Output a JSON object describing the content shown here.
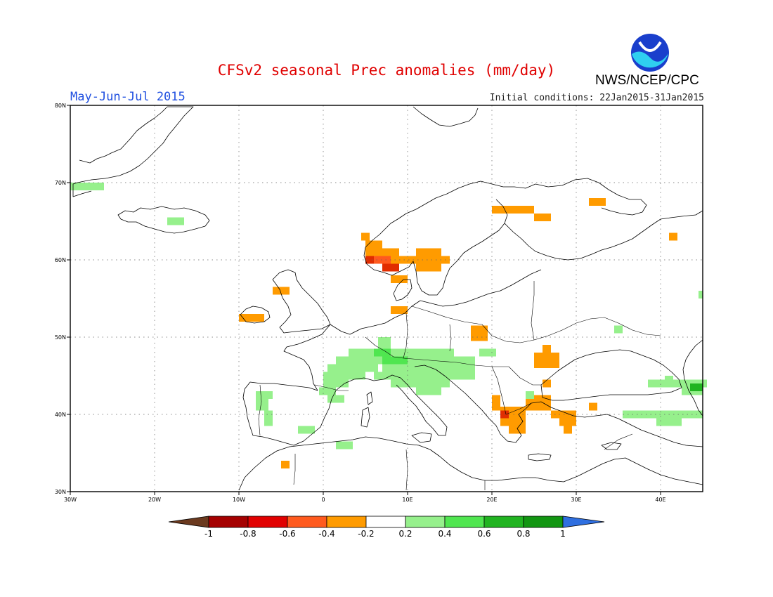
{
  "title": "CFSv2 seasonal Prec anomalies (mm/day)",
  "period": "May-Jun-Jul 2015",
  "initial_conditions": "Initial conditions: 22Jan2015-31Jan2015",
  "agency": "NWS/NCEP/CPC",
  "logo_text": "NOAA",
  "map": {
    "lon_range": [
      -30,
      45
    ],
    "lat_range": [
      30,
      80
    ],
    "lat_labels": [
      "30N",
      "40N",
      "50N",
      "60N",
      "70N",
      "80N"
    ],
    "lat_values": [
      30,
      40,
      50,
      60,
      70,
      80
    ],
    "lon_labels": [
      "30W",
      "20W",
      "10W",
      "0",
      "10E",
      "20E",
      "30E",
      "40E"
    ],
    "lon_values": [
      -30,
      -20,
      -10,
      0,
      10,
      20,
      30,
      40
    ]
  },
  "colorbar": {
    "labels": [
      "-1",
      "-0.8",
      "-0.6",
      "-0.4",
      "-0.2",
      "0.2",
      "0.4",
      "0.6",
      "0.8",
      "1"
    ],
    "colors": [
      "#6b3a1f",
      "#a50000",
      "#e10000",
      "#ff5a1e",
      "#ff9b00",
      "#ffffff",
      "#96f08c",
      "#50e650",
      "#21b421",
      "#129612",
      "#2f6fe0"
    ]
  },
  "anomaly_colors": {
    "dry_04": "#ff9b00",
    "dry_06": "#ff5a1e",
    "dry_08": "#e12d00",
    "wet_02": "#96f08c",
    "wet_04": "#50e650",
    "wet_06": "#21b421"
  },
  "anomaly_cells": [
    {
      "lon": -30,
      "lat": 69,
      "w": 4,
      "h": 1,
      "c": "wet_02"
    },
    {
      "lon": -18.5,
      "lat": 64.5,
      "w": 2,
      "h": 1,
      "c": "wet_02"
    },
    {
      "lon": 4.5,
      "lat": 62.5,
      "w": 1,
      "h": 1,
      "c": "dry_04"
    },
    {
      "lon": 5,
      "lat": 61.5,
      "w": 2,
      "h": 1,
      "c": "dry_04"
    },
    {
      "lon": 5,
      "lat": 60.5,
      "w": 1,
      "h": 1,
      "c": "dry_04"
    },
    {
      "lon": 5,
      "lat": 59.5,
      "w": 1,
      "h": 1,
      "c": "dry_08"
    },
    {
      "lon": 6,
      "lat": 59.5,
      "w": 2,
      "h": 1,
      "c": "dry_06"
    },
    {
      "lon": 6,
      "lat": 60.5,
      "w": 3,
      "h": 1,
      "c": "dry_04"
    },
    {
      "lon": 7,
      "lat": 58.5,
      "w": 2,
      "h": 1,
      "c": "dry_08"
    },
    {
      "lon": 8,
      "lat": 59.5,
      "w": 3,
      "h": 1,
      "c": "dry_04"
    },
    {
      "lon": 11,
      "lat": 60.5,
      "w": 3,
      "h": 1,
      "c": "dry_04"
    },
    {
      "lon": 11,
      "lat": 59.5,
      "w": 4,
      "h": 1,
      "c": "dry_04"
    },
    {
      "lon": 11,
      "lat": 58.5,
      "w": 2,
      "h": 1,
      "c": "dry_04"
    },
    {
      "lon": 13,
      "lat": 58.5,
      "w": 1,
      "h": 1,
      "c": "dry_04"
    },
    {
      "lon": 8,
      "lat": 57,
      "w": 2,
      "h": 1,
      "c": "dry_04"
    },
    {
      "lon": 8,
      "lat": 53,
      "w": 2,
      "h": 1,
      "c": "dry_04"
    },
    {
      "lon": -6,
      "lat": 55.5,
      "w": 2,
      "h": 1,
      "c": "dry_04"
    },
    {
      "lon": -10,
      "lat": 52,
      "w": 3,
      "h": 1,
      "c": "dry_04"
    },
    {
      "lon": 20,
      "lat": 66,
      "w": 5,
      "h": 1,
      "c": "dry_04"
    },
    {
      "lon": 25,
      "lat": 65,
      "w": 2,
      "h": 1,
      "c": "dry_04"
    },
    {
      "lon": 31.5,
      "lat": 67,
      "w": 2,
      "h": 1,
      "c": "dry_04"
    },
    {
      "lon": 41,
      "lat": 62.5,
      "w": 1,
      "h": 1,
      "c": "dry_04"
    },
    {
      "lon": 17.5,
      "lat": 49.5,
      "w": 2,
      "h": 2,
      "c": "dry_04"
    },
    {
      "lon": 25,
      "lat": 46,
      "w": 3,
      "h": 2,
      "c": "dry_04"
    },
    {
      "lon": 26,
      "lat": 48,
      "w": 1,
      "h": 1,
      "c": "dry_04"
    },
    {
      "lon": 26,
      "lat": 43.5,
      "w": 1,
      "h": 1,
      "c": "dry_04"
    },
    {
      "lon": 20,
      "lat": 40.5,
      "w": 1,
      "h": 2,
      "c": "dry_04"
    },
    {
      "lon": 21,
      "lat": 38.5,
      "w": 3,
      "h": 2.5,
      "c": "dry_04"
    },
    {
      "lon": 21,
      "lat": 39.5,
      "w": 1,
      "h": 1,
      "c": "dry_08"
    },
    {
      "lon": 22,
      "lat": 37.5,
      "w": 2,
      "h": 1,
      "c": "dry_04"
    },
    {
      "lon": 24,
      "lat": 40.5,
      "w": 3,
      "h": 2,
      "c": "dry_04"
    },
    {
      "lon": 27,
      "lat": 39.5,
      "w": 3,
      "h": 1,
      "c": "dry_04"
    },
    {
      "lon": 28,
      "lat": 38.5,
      "w": 2,
      "h": 1,
      "c": "dry_04"
    },
    {
      "lon": 28.5,
      "lat": 37.5,
      "w": 1,
      "h": 1,
      "c": "dry_04"
    },
    {
      "lon": 31.5,
      "lat": 40.5,
      "w": 1,
      "h": 1,
      "c": "dry_04"
    },
    {
      "lon": -5,
      "lat": 33,
      "w": 1,
      "h": 1,
      "c": "dry_04"
    },
    {
      "lon": 3,
      "lat": 47.5,
      "w": 4,
      "h": 1,
      "c": "wet_02"
    },
    {
      "lon": 1.5,
      "lat": 46.5,
      "w": 5,
      "h": 1,
      "c": "wet_02"
    },
    {
      "lon": 0.5,
      "lat": 45.5,
      "w": 6,
      "h": 1,
      "c": "wet_02"
    },
    {
      "lon": 0,
      "lat": 44.5,
      "w": 5,
      "h": 1,
      "c": "wet_02"
    },
    {
      "lon": 0,
      "lat": 43.5,
      "w": 3,
      "h": 1,
      "c": "wet_02"
    },
    {
      "lon": -0.5,
      "lat": 42.5,
      "w": 2,
      "h": 1,
      "c": "wet_02"
    },
    {
      "lon": 0.5,
      "lat": 41.5,
      "w": 2,
      "h": 1,
      "c": "wet_02"
    },
    {
      "lon": 6.5,
      "lat": 47.5,
      "w": 9,
      "h": 1,
      "c": "wet_02"
    },
    {
      "lon": 6,
      "lat": 46.5,
      "w": 12,
      "h": 1,
      "c": "wet_02"
    },
    {
      "lon": 7,
      "lat": 45.5,
      "w": 11,
      "h": 1,
      "c": "wet_02"
    },
    {
      "lon": 6,
      "lat": 44.5,
      "w": 12,
      "h": 1,
      "c": "wet_02"
    },
    {
      "lon": 8,
      "lat": 43.5,
      "w": 7,
      "h": 1,
      "c": "wet_02"
    },
    {
      "lon": 11,
      "lat": 42.5,
      "w": 3,
      "h": 1,
      "c": "wet_02"
    },
    {
      "lon": 6.5,
      "lat": 48.5,
      "w": 1.5,
      "h": 1.5,
      "c": "wet_02"
    },
    {
      "lon": 18.5,
      "lat": 47.5,
      "w": 2,
      "h": 1,
      "c": "wet_02"
    },
    {
      "lon": -8,
      "lat": 42,
      "w": 2,
      "h": 1,
      "c": "wet_02"
    },
    {
      "lon": -8,
      "lat": 40.5,
      "w": 1.5,
      "h": 1.5,
      "c": "wet_02"
    },
    {
      "lon": -7,
      "lat": 38.5,
      "w": 1,
      "h": 2,
      "c": "wet_02"
    },
    {
      "lon": -3,
      "lat": 37.5,
      "w": 2,
      "h": 1,
      "c": "wet_02"
    },
    {
      "lon": 1.5,
      "lat": 35.5,
      "w": 2,
      "h": 1,
      "c": "wet_02"
    },
    {
      "lon": 24,
      "lat": 42,
      "w": 1,
      "h": 1,
      "c": "wet_02"
    },
    {
      "lon": 34.5,
      "lat": 50.5,
      "w": 1,
      "h": 1,
      "c": "wet_02"
    },
    {
      "lon": 38.5,
      "lat": 43.5,
      "w": 7,
      "h": 1,
      "c": "wet_02"
    },
    {
      "lon": 40.5,
      "lat": 44,
      "w": 1,
      "h": 1,
      "c": "wet_02"
    },
    {
      "lon": 42.5,
      "lat": 42.5,
      "w": 2.5,
      "h": 1,
      "c": "wet_02"
    },
    {
      "lon": 35.5,
      "lat": 39.5,
      "w": 9.5,
      "h": 1,
      "c": "wet_02"
    },
    {
      "lon": 39.5,
      "lat": 38.5,
      "w": 3,
      "h": 1,
      "c": "wet_02"
    },
    {
      "lon": 44.5,
      "lat": 55,
      "w": 0.5,
      "h": 1,
      "c": "wet_02"
    },
    {
      "lon": 7,
      "lat": 46.5,
      "w": 3,
      "h": 1,
      "c": "wet_04"
    },
    {
      "lon": 6,
      "lat": 47.5,
      "w": 2,
      "h": 1,
      "c": "wet_04"
    },
    {
      "lon": 43.5,
      "lat": 43,
      "w": 1.5,
      "h": 1,
      "c": "wet_06"
    }
  ]
}
